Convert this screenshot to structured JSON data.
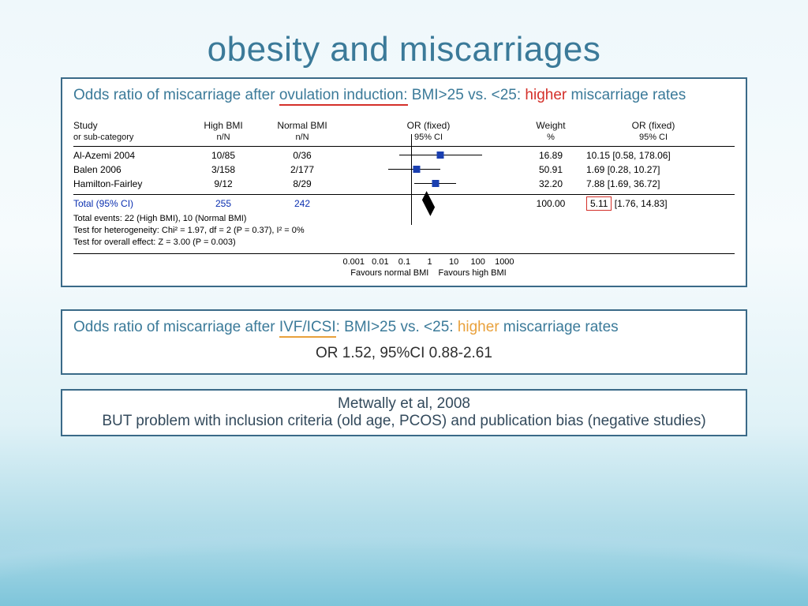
{
  "title": "obesity and miscarriages",
  "panel1": {
    "caption_pre": "Odds ratio of miscarriage after ",
    "caption_uline": "ovulation induction:",
    "caption_mid": " BMI>25 vs. <25: ",
    "caption_higher": "higher",
    "caption_post": " miscarriage rates",
    "headers": {
      "study": "Study",
      "study_sub": "or sub-category",
      "high": "High BMI",
      "nn": "n/N",
      "normal": "Normal BMI",
      "or": "OR (fixed)",
      "ci": "95% CI",
      "weight": "Weight",
      "pct": "%"
    },
    "rows": [
      {
        "study": "Al-Azemi 2004",
        "high": "10/85",
        "normal": "0/36",
        "weight": "16.89",
        "or": "10.15 [0.58, 178.06]",
        "sq_left_pct": 57,
        "wh_left_pct": 33,
        "wh_width_pct": 48
      },
      {
        "study": "Balen 2006",
        "high": "3/158",
        "normal": "2/177",
        "weight": "50.91",
        "or": "1.69 [0.28, 10.27]",
        "sq_left_pct": 43,
        "wh_left_pct": 27,
        "wh_width_pct": 30
      },
      {
        "study": "Hamilton-Fairley",
        "high": "9/12",
        "normal": "8/29",
        "weight": "32.20",
        "or": "7.88 [1.69, 36.72]",
        "sq_left_pct": 54,
        "wh_left_pct": 42,
        "wh_width_pct": 24
      }
    ],
    "total": {
      "label": "Total (95% CI)",
      "high": "255",
      "normal": "242",
      "weight": "100.00",
      "or_box": "5.11",
      "or_rest": " [1.76, 14.83]",
      "diamond_left_pct": 50
    },
    "notes": {
      "l1": "Total events: 22 (High BMI), 10 (Normal BMI)",
      "l2": "Test for heterogeneity: Chi² = 1.97, df = 2 (P = 0.37), I² = 0%",
      "l3": "Test for overall effect: Z = 3.00 (P = 0.003)"
    },
    "scale": {
      "nums": "0.001   0.01    0.1       1       10     100    1000",
      "left": "Favours normal BMI",
      "right": "Favours high BMI"
    },
    "axis_left_pct": 40
  },
  "panel2": {
    "caption_pre": "Odds ratio of miscarriage after ",
    "caption_uline": "IVF/ICSI",
    "caption_mid": ": BMI>25 vs. <25: ",
    "caption_higher": "higher",
    "caption_post": " miscarriage rates",
    "or_line": "OR 1.52, 95%CI 0.88-2.61"
  },
  "panel3": {
    "l1": "Metwally et al, 2008",
    "l2": "BUT problem with inclusion criteria (old age, PCOS) and publication bias (negative studies)"
  }
}
